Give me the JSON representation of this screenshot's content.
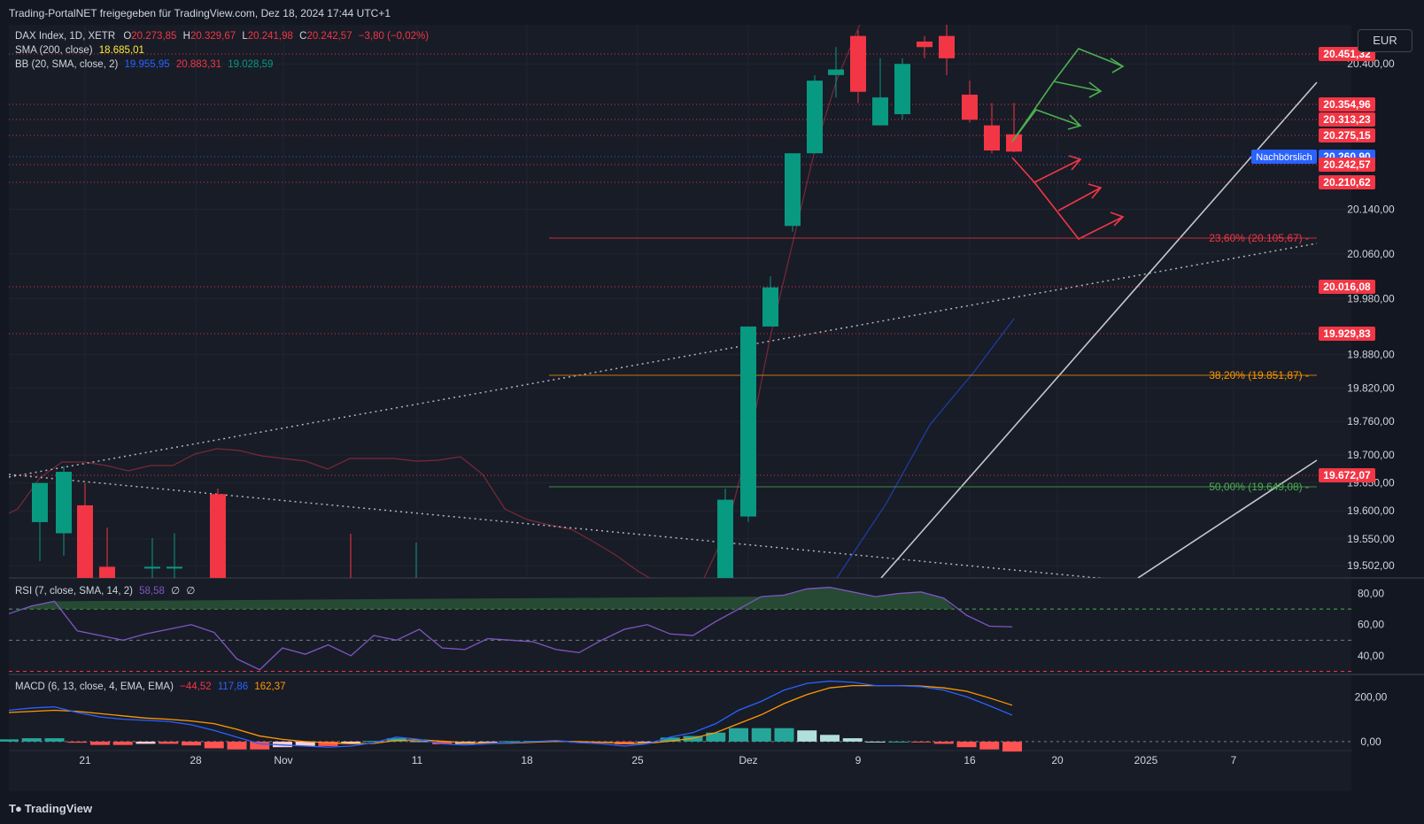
{
  "header": {
    "title": "Trading-PortalNET freigegeben für TradingView.com, Dez 18, 2024 17:44 UTC+1"
  },
  "footer": {
    "brand": "TradingView",
    "logo_icon": "tradingview-logo-icon"
  },
  "currency_button": "EUR",
  "legend": {
    "symbol": "DAX Index, 1D, XETR",
    "ohlc": {
      "O": "20.273,85",
      "H": "20.329,67",
      "L": "20.241,98",
      "C": "20.242,57",
      "change": "−3,80 (−0,02%)"
    },
    "sma_label": "SMA (200, close)",
    "sma_value": "18.685,01",
    "bb_label": "BB (20, SMA, close, 2)",
    "bb_basis": "19.955,95",
    "bb_upper": "20.883,31",
    "bb_lower": "19.028,59",
    "rsi_label": "RSI (7, close, SMA, 14, 2)",
    "rsi_value": "58,58",
    "rsi_extra1": "∅",
    "rsi_extra2": "∅",
    "macd_label": "MACD (6, 13, close, 4, EMA, EMA)",
    "macd_hist": "−44,52",
    "macd_line": "117,86",
    "macd_signal": "162,37"
  },
  "colors": {
    "up": "#089981",
    "down": "#f23645",
    "bg": "#181c27",
    "text": "#d1d4dc",
    "blue": "#2962ff",
    "orange": "#ff9800",
    "green_arrow": "#4caf50",
    "red_arrow": "#f23645",
    "rsi_line": "#7e57c2"
  },
  "chart_data": [
    {
      "type": "candlestick",
      "title": "DAX Index, 1D, XETR",
      "x_ticks": [
        "21",
        "28",
        "Nov",
        "11",
        "18",
        "25",
        "Dez",
        "9",
        "16",
        "20",
        "2025",
        "7"
      ],
      "y_ticks": [
        "20.400,00",
        "20.140,00",
        "20.060,00",
        "19.980,00",
        "19.880,00",
        "19.820,00",
        "19.760,00",
        "19.700,00",
        "19.650,00",
        "19.600,00",
        "19.550,00",
        "19.502,00"
      ],
      "ylim": [
        19480,
        20470
      ],
      "candles": [
        {
          "date": "2024-10-18",
          "o": 19580,
          "h": 19650,
          "l": 19510,
          "c": 19650
        },
        {
          "date": "2024-10-21",
          "o": 19560,
          "h": 19680,
          "l": 19520,
          "c": 19670
        },
        {
          "date": "2024-10-22",
          "o": 19610,
          "h": 19650,
          "l": 19460,
          "c": 19470
        },
        {
          "date": "2024-10-23",
          "o": 19500,
          "h": 19570,
          "l": 19440,
          "c": 19440
        },
        {
          "date": "2024-10-28",
          "o": 19500,
          "h": 19550,
          "l": 19490,
          "c": 19500
        },
        {
          "date": "2024-10-29",
          "o": 19500,
          "h": 19560,
          "l": 19480,
          "c": 19500
        },
        {
          "date": "2024-10-30",
          "o": 19630,
          "h": 19640,
          "l": 19350,
          "c": 19360
        },
        {
          "date": "2024-11-29",
          "o": 19400,
          "h": 19640,
          "l": 19400,
          "c": 19620
        },
        {
          "date": "2024-12-02",
          "o": 19590,
          "h": 19930,
          "l": 19580,
          "c": 19930
        },
        {
          "date": "2024-12-03",
          "o": 19930,
          "h": 20020,
          "l": 19930,
          "c": 20000
        },
        {
          "date": "2024-12-05",
          "o": 20110,
          "h": 20240,
          "l": 20100,
          "c": 20240
        },
        {
          "date": "2024-12-06",
          "o": 20240,
          "h": 20380,
          "l": 20240,
          "c": 20370
        },
        {
          "date": "2024-12-09",
          "o": 20380,
          "h": 20430,
          "l": 20340,
          "c": 20390
        },
        {
          "date": "2024-12-10",
          "o": 20450,
          "h": 20460,
          "l": 20330,
          "c": 20350
        },
        {
          "date": "2024-12-11",
          "o": 20290,
          "h": 20410,
          "l": 20290,
          "c": 20340
        },
        {
          "date": "2024-12-12",
          "o": 20310,
          "h": 20410,
          "l": 20300,
          "c": 20400
        },
        {
          "date": "2024-12-13",
          "o": 20440,
          "h": 20450,
          "l": 20410,
          "c": 20430
        },
        {
          "date": "2024-12-16",
          "o": 20450,
          "h": 20520,
          "l": 20380,
          "c": 20410
        },
        {
          "date": "2024-12-17",
          "o": 20345,
          "h": 20370,
          "l": 20295,
          "c": 20300
        },
        {
          "date": "2024-12-18a",
          "o": 20290,
          "h": 20330,
          "l": 20240,
          "c": 20245
        },
        {
          "date": "2024-12-18",
          "o": 20274,
          "h": 20330,
          "l": 20242,
          "c": 20243
        }
      ],
      "price_levels": [
        {
          "value": "20.451,32",
          "kind": "red"
        },
        {
          "value": "20.354,96",
          "kind": "red"
        },
        {
          "value": "20.313,23",
          "kind": "red"
        },
        {
          "value": "20.275,15",
          "kind": "red"
        },
        {
          "value": "20.260,90",
          "kind": "blue",
          "tag": "Nachbörslich"
        },
        {
          "value": "20.242,57",
          "kind": "red"
        },
        {
          "value": "20.210,62",
          "kind": "red"
        },
        {
          "value": "20.016,08",
          "kind": "red"
        },
        {
          "value": "19.929,83",
          "kind": "red"
        },
        {
          "value": "19.672,07",
          "kind": "red"
        }
      ],
      "fibonacci": [
        {
          "label": "23,60% (20.105,67)",
          "color": "#f23645"
        },
        {
          "label": "38,20% (19.851,87)",
          "color": "#ff9800"
        },
        {
          "label": "50,00% (19.649,08)",
          "color": "#4caf50"
        }
      ]
    },
    {
      "type": "line",
      "title": "RSI (7, close, SMA, 14, 2)",
      "y_ticks": [
        "80,00",
        "60,00",
        "40,00"
      ],
      "ylim": [
        28,
        90
      ],
      "levels": [
        70,
        50,
        30
      ],
      "values": [
        67,
        72,
        75,
        56,
        53,
        50,
        54,
        57,
        60,
        55,
        38,
        31,
        45,
        41,
        47,
        40,
        53,
        50,
        57,
        45,
        44,
        51,
        50,
        49,
        44,
        42,
        50,
        57,
        60,
        54,
        53,
        62,
        70,
        78,
        79,
        83,
        84,
        81,
        78,
        80,
        81,
        77,
        66,
        59,
        58.58
      ]
    },
    {
      "type": "bar+line",
      "title": "MACD (6, 13, close, 4, EMA, EMA)",
      "y_ticks": [
        "200,00",
        "0,00"
      ],
      "ylim": [
        -40,
        300
      ],
      "macd": [
        140,
        150,
        155,
        130,
        110,
        100,
        95,
        90,
        75,
        50,
        20,
        -10,
        -15,
        -20,
        -25,
        -20,
        -5,
        20,
        10,
        -10,
        -15,
        -10,
        -5,
        0,
        5,
        -5,
        -10,
        -20,
        -10,
        20,
        40,
        80,
        140,
        180,
        230,
        260,
        270,
        265,
        250,
        250,
        245,
        230,
        200,
        160,
        117.86
      ],
      "signal": [
        130,
        135,
        140,
        135,
        125,
        115,
        105,
        100,
        92,
        80,
        55,
        25,
        10,
        0,
        -5,
        -10,
        -8,
        5,
        8,
        2,
        -5,
        -8,
        -7,
        -3,
        1,
        0,
        -3,
        -8,
        -8,
        2,
        15,
        40,
        80,
        120,
        170,
        210,
        240,
        250,
        250,
        250,
        248,
        240,
        225,
        195,
        162.37
      ],
      "hist": [
        10,
        15,
        15,
        -5,
        -15,
        -15,
        -10,
        -10,
        -17,
        -30,
        -35,
        -35,
        -25,
        -20,
        -20,
        -10,
        3,
        15,
        2,
        -12,
        -10,
        -2,
        2,
        3,
        4,
        -5,
        -7,
        -12,
        -2,
        18,
        25,
        40,
        60,
        60,
        60,
        50,
        30,
        15,
        0,
        0,
        -3,
        -10,
        -25,
        -35,
        -44.52
      ]
    }
  ]
}
